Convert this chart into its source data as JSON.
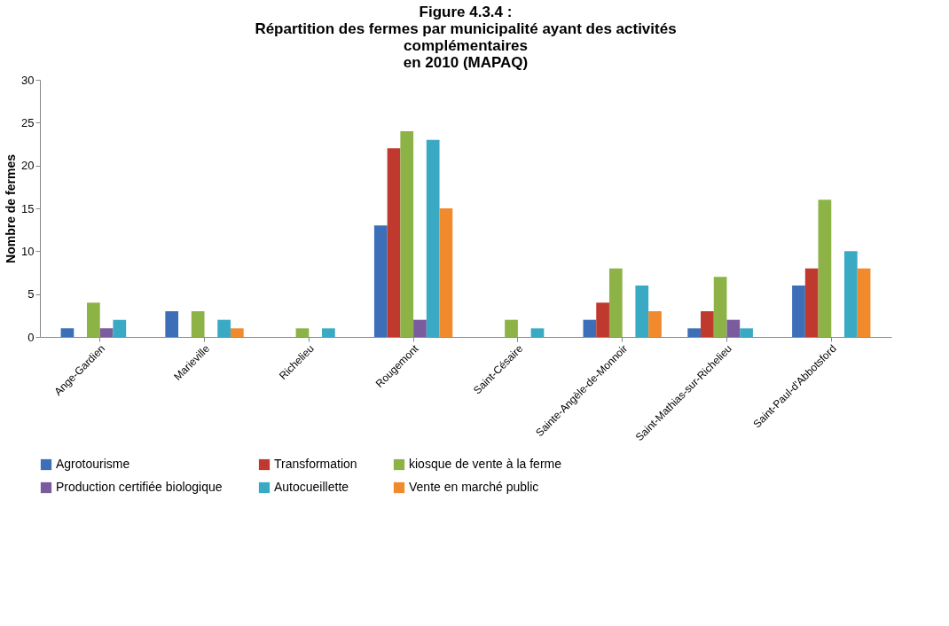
{
  "chart_data": {
    "type": "bar",
    "title": "Figure 4.3.4 :\nRépartition des fermes par municipalité ayant des activités\ncomplémentaires\nen 2010 (MAPAQ)",
    "ylabel": "Nombre de fermes",
    "categories": [
      "Ange-Gardien",
      "Marieville",
      "Richelieu",
      "Rougemont",
      "Saint-Césaire",
      "Sainte-Angèle-de-Monnoir",
      "Saint-Mathias-sur-Richelieu",
      "Saint-Paul-d'Abbotsford"
    ],
    "series": [
      {
        "name": "Agrotourisme",
        "color": "#3c6fb8",
        "values": [
          1,
          3,
          0,
          13,
          0,
          2,
          1,
          6
        ]
      },
      {
        "name": "Transformation",
        "color": "#c0392f",
        "values": [
          0,
          0,
          0,
          22,
          0,
          4,
          3,
          8
        ]
      },
      {
        "name": "kiosque de vente à la ferme",
        "color": "#8db346",
        "values": [
          4,
          3,
          1,
          24,
          2,
          8,
          7,
          16
        ]
      },
      {
        "name": "Production certifiée biologique",
        "color": "#7a5b9e",
        "values": [
          1,
          0,
          0,
          2,
          0,
          0,
          2,
          0
        ]
      },
      {
        "name": "Autocueillette",
        "color": "#3aaac4",
        "values": [
          2,
          2,
          1,
          23,
          1,
          6,
          1,
          10
        ]
      },
      {
        "name": "Vente en marché public",
        "color": "#f08a2c",
        "values": [
          0,
          1,
          0,
          15,
          0,
          3,
          0,
          8
        ]
      }
    ],
    "ylim": [
      0,
      30
    ],
    "yticks": [
      0,
      5,
      10,
      15,
      20,
      25,
      30
    ],
    "grid": false,
    "legend": "bottom"
  }
}
